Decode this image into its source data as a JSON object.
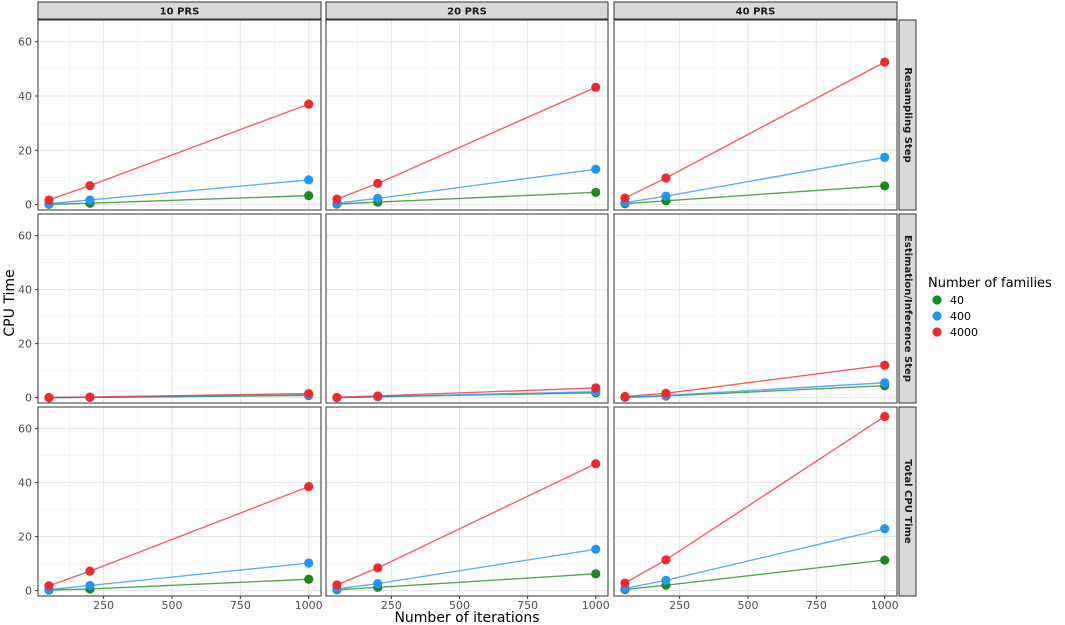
{
  "chart_data": {
    "type": "line",
    "x_label": "Number of iterations",
    "y_label": "CPU Time",
    "x_ticks": [
      250,
      500,
      750,
      1000
    ],
    "y_ticks": [
      0,
      20,
      40,
      60
    ],
    "xlim": [
      10,
      1045
    ],
    "ylim": [
      -2,
      68
    ],
    "grid": true,
    "legend": {
      "title": "Number of families",
      "position": "right",
      "entries": [
        {
          "label": "40",
          "color": "#1a8a1a"
        },
        {
          "label": "400",
          "color": "#2196f3"
        },
        {
          "label": "4000",
          "color": "#f02830"
        }
      ]
    },
    "facet_columns": [
      "10 PRS",
      "20 PRS",
      "40 PRS"
    ],
    "facet_rows": [
      "Resampling Step",
      "Estimation/Inference Step",
      "Total CPU Time"
    ],
    "x": [
      50,
      200,
      1000
    ],
    "panels": [
      {
        "column": "10 PRS",
        "row": "Resampling Step",
        "series": [
          {
            "name": "40",
            "values": [
              0.1,
              0.5,
              3.3
            ]
          },
          {
            "name": "400",
            "values": [
              0.3,
              1.7,
              9.1
            ]
          },
          {
            "name": "4000",
            "values": [
              1.7,
              7.0,
              37.0
            ]
          }
        ]
      },
      {
        "column": "20 PRS",
        "row": "Resampling Step",
        "series": [
          {
            "name": "40",
            "values": [
              0.2,
              0.9,
              4.5
            ]
          },
          {
            "name": "400",
            "values": [
              0.5,
              2.3,
              13.0
            ]
          },
          {
            "name": "4000",
            "values": [
              2.0,
              7.8,
              43.2
            ]
          }
        ]
      },
      {
        "column": "40 PRS",
        "row": "Resampling Step",
        "series": [
          {
            "name": "40",
            "values": [
              0.3,
              1.4,
              6.9
            ]
          },
          {
            "name": "400",
            "values": [
              0.7,
              3.1,
              17.4
            ]
          },
          {
            "name": "4000",
            "values": [
              2.4,
              9.8,
              52.5
            ]
          }
        ]
      },
      {
        "column": "10 PRS",
        "row": "Estimation/Inference Step",
        "series": [
          {
            "name": "40",
            "values": [
              0.0,
              0.1,
              0.8
            ]
          },
          {
            "name": "400",
            "values": [
              0.0,
              0.1,
              1.0
            ]
          },
          {
            "name": "4000",
            "values": [
              0.0,
              0.2,
              1.5
            ]
          }
        ]
      },
      {
        "column": "20 PRS",
        "row": "Estimation/Inference Step",
        "series": [
          {
            "name": "40",
            "values": [
              0.0,
              0.3,
              1.8
            ]
          },
          {
            "name": "400",
            "values": [
              0.0,
              0.3,
              2.2
            ]
          },
          {
            "name": "4000",
            "values": [
              0.1,
              0.6,
              3.6
            ]
          }
        ]
      },
      {
        "column": "40 PRS",
        "row": "Estimation/Inference Step",
        "series": [
          {
            "name": "40",
            "values": [
              0.1,
              0.6,
              4.4
            ]
          },
          {
            "name": "400",
            "values": [
              0.1,
              0.8,
              5.5
            ]
          },
          {
            "name": "4000",
            "values": [
              0.4,
              1.6,
              12.0
            ]
          }
        ]
      },
      {
        "column": "10 PRS",
        "row": "Total CPU Time",
        "series": [
          {
            "name": "40",
            "values": [
              0.2,
              0.6,
              4.2
            ]
          },
          {
            "name": "400",
            "values": [
              0.4,
              1.9,
              10.2
            ]
          },
          {
            "name": "4000",
            "values": [
              1.8,
              7.2,
              38.5
            ]
          }
        ]
      },
      {
        "column": "20 PRS",
        "row": "Total CPU Time",
        "series": [
          {
            "name": "40",
            "values": [
              0.3,
              1.2,
              6.2
            ]
          },
          {
            "name": "400",
            "values": [
              0.6,
              2.6,
              15.3
            ]
          },
          {
            "name": "4000",
            "values": [
              2.1,
              8.4,
              47.0
            ]
          }
        ]
      },
      {
        "column": "40 PRS",
        "row": "Total CPU Time",
        "series": [
          {
            "name": "40",
            "values": [
              0.4,
              2.0,
              11.3
            ]
          },
          {
            "name": "400",
            "values": [
              0.8,
              3.8,
              22.9
            ]
          },
          {
            "name": "4000",
            "values": [
              2.8,
              11.4,
              64.5
            ]
          }
        ]
      }
    ]
  }
}
